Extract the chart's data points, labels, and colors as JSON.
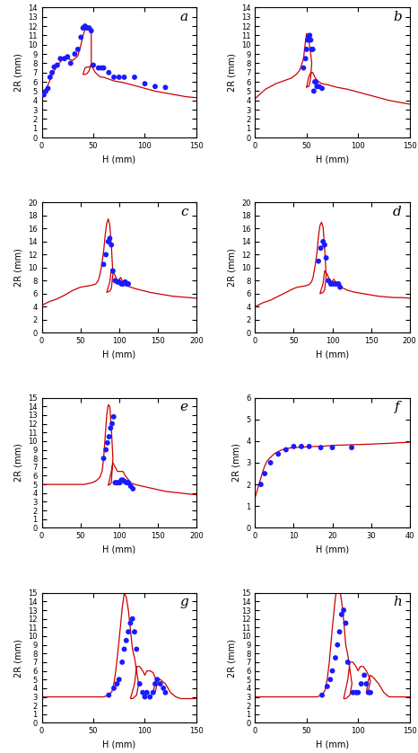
{
  "subplots": [
    {
      "label": "a",
      "xlim": [
        0,
        150
      ],
      "ylim": [
        0,
        14
      ],
      "xticks": [
        0,
        50,
        100,
        150
      ],
      "yticks": [
        0,
        1,
        2,
        3,
        4,
        5,
        6,
        7,
        8,
        9,
        10,
        11,
        12,
        13,
        14
      ],
      "xlabel": "H (mm)",
      "ylabel": "2R (mm)",
      "scatter_x": [
        2,
        4,
        6,
        8,
        10,
        12,
        15,
        18,
        22,
        25,
        28,
        32,
        35,
        38,
        40,
        42,
        44,
        46,
        48,
        50,
        55,
        58,
        60,
        65,
        70,
        75,
        80,
        90,
        100,
        110,
        120
      ],
      "scatter_y": [
        4.6,
        5.0,
        5.3,
        6.5,
        7.0,
        7.6,
        7.8,
        8.5,
        8.5,
        8.7,
        8.0,
        9.0,
        9.5,
        10.8,
        11.8,
        12.0,
        11.8,
        11.8,
        11.5,
        7.8,
        7.5,
        7.5,
        7.5,
        7.0,
        6.5,
        6.5,
        6.5,
        6.5,
        5.8,
        5.5,
        5.4
      ],
      "line_x": [
        0,
        1,
        3,
        5,
        8,
        12,
        16,
        20,
        25,
        30,
        35,
        38,
        40,
        42,
        44,
        46,
        48,
        48,
        46,
        44,
        42,
        40,
        42,
        44,
        46,
        48,
        50,
        52,
        54,
        56,
        58,
        60,
        65,
        70,
        80,
        90,
        100,
        110,
        120,
        130,
        140,
        150
      ],
      "line_y": [
        4.5,
        4.7,
        5.0,
        5.4,
        6.2,
        7.2,
        7.9,
        8.4,
        8.5,
        8.3,
        8.8,
        10.0,
        11.0,
        11.6,
        11.7,
        11.6,
        11.6,
        8.0,
        7.2,
        6.9,
        6.8,
        6.8,
        7.5,
        7.6,
        7.6,
        7.7,
        7.4,
        7.0,
        6.8,
        6.6,
        6.5,
        6.5,
        6.3,
        6.1,
        5.9,
        5.6,
        5.3,
        5.0,
        4.8,
        4.6,
        4.4,
        4.3
      ]
    },
    {
      "label": "b",
      "xlim": [
        0,
        150
      ],
      "ylim": [
        0,
        14
      ],
      "xticks": [
        0,
        50,
        100,
        150
      ],
      "yticks": [
        0,
        1,
        2,
        3,
        4,
        5,
        6,
        7,
        8,
        9,
        10,
        11,
        12,
        13,
        14
      ],
      "xlabel": "H (mm)",
      "ylabel": "2R (mm)",
      "scatter_x": [
        47,
        49,
        50,
        51,
        52,
        53,
        54,
        55,
        56,
        57,
        58,
        59,
        60,
        62,
        65
      ],
      "scatter_y": [
        7.5,
        8.5,
        9.5,
        10.5,
        10.8,
        11.0,
        10.5,
        9.5,
        9.5,
        5.0,
        6.0,
        6.0,
        5.5,
        5.5,
        5.3
      ],
      "line_x": [
        0,
        2,
        5,
        10,
        15,
        20,
        25,
        30,
        35,
        40,
        43,
        45,
        47,
        48,
        49,
        50,
        51,
        52,
        53,
        54,
        55,
        54,
        53,
        52,
        51,
        50,
        52,
        54,
        56,
        58,
        60,
        62,
        65,
        70,
        80,
        90,
        100,
        110,
        120,
        130,
        140,
        150
      ],
      "line_y": [
        4.2,
        4.4,
        4.7,
        5.2,
        5.5,
        5.8,
        6.0,
        6.2,
        6.4,
        6.8,
        7.2,
        7.8,
        8.5,
        9.5,
        10.5,
        11.2,
        11.0,
        10.5,
        9.8,
        9.0,
        8.0,
        6.5,
        5.8,
        5.5,
        5.5,
        5.4,
        6.5,
        7.0,
        7.0,
        6.5,
        6.2,
        6.0,
        5.8,
        5.7,
        5.4,
        5.2,
        4.9,
        4.6,
        4.3,
        4.0,
        3.8,
        3.6
      ]
    },
    {
      "label": "c",
      "xlim": [
        0,
        200
      ],
      "ylim": [
        0,
        20
      ],
      "xticks": [
        0,
        50,
        100,
        150,
        200
      ],
      "yticks": [
        0,
        2,
        4,
        6,
        8,
        10,
        12,
        14,
        16,
        18,
        20
      ],
      "xlabel": "H (mm)",
      "ylabel": "2R (mm)",
      "scatter_x": [
        80,
        83,
        86,
        88,
        90,
        92,
        95,
        98,
        100,
        103,
        105,
        108,
        110,
        112
      ],
      "scatter_y": [
        10.5,
        12.0,
        14.0,
        14.5,
        13.5,
        9.5,
        8.0,
        7.8,
        7.8,
        7.5,
        7.5,
        7.8,
        7.5,
        7.5
      ],
      "line_x": [
        0,
        5,
        10,
        20,
        30,
        40,
        50,
        55,
        60,
        65,
        70,
        73,
        75,
        77,
        80,
        82,
        84,
        86,
        88,
        90,
        92,
        90,
        88,
        86,
        84,
        88,
        90,
        92,
        94,
        96,
        98,
        100,
        102,
        104,
        106,
        108,
        110,
        115,
        120,
        130,
        140,
        150,
        160,
        170,
        180,
        190,
        200
      ],
      "line_y": [
        4.2,
        4.5,
        4.8,
        5.2,
        5.8,
        6.5,
        7.0,
        7.1,
        7.2,
        7.3,
        7.5,
        8.0,
        8.8,
        10.0,
        12.5,
        15.0,
        16.8,
        17.5,
        16.5,
        13.5,
        9.0,
        6.8,
        6.4,
        6.3,
        6.2,
        7.8,
        9.8,
        9.5,
        9.0,
        8.5,
        8.0,
        8.2,
        8.5,
        8.0,
        7.8,
        7.5,
        7.2,
        7.0,
        6.8,
        6.5,
        6.2,
        6.0,
        5.8,
        5.6,
        5.5,
        5.4,
        5.3
      ]
    },
    {
      "label": "d",
      "xlim": [
        0,
        200
      ],
      "ylim": [
        0,
        20
      ],
      "xticks": [
        0,
        50,
        100,
        150,
        200
      ],
      "yticks": [
        0,
        2,
        4,
        6,
        8,
        10,
        12,
        14,
        16,
        18,
        20
      ],
      "xlabel": "H (mm)",
      "ylabel": "2R (mm)",
      "scatter_x": [
        82,
        85,
        88,
        90,
        92,
        95,
        98,
        100,
        103,
        105,
        108,
        110
      ],
      "scatter_y": [
        11.0,
        13.0,
        14.0,
        13.5,
        11.5,
        8.0,
        7.5,
        7.5,
        7.5,
        7.5,
        7.5,
        7.0
      ],
      "line_x": [
        0,
        5,
        10,
        20,
        30,
        40,
        50,
        55,
        60,
        65,
        70,
        73,
        75,
        77,
        80,
        82,
        84,
        86,
        88,
        90,
        92,
        90,
        88,
        86,
        84,
        88,
        90,
        92,
        94,
        96,
        98,
        100,
        102,
        104,
        106,
        108,
        110,
        115,
        120,
        130,
        140,
        150,
        160,
        170,
        180,
        190,
        200
      ],
      "line_y": [
        4.0,
        4.3,
        4.6,
        5.0,
        5.6,
        6.2,
        6.8,
        7.0,
        7.1,
        7.2,
        7.4,
        7.8,
        8.5,
        9.8,
        12.2,
        14.8,
        16.5,
        17.0,
        16.2,
        13.0,
        8.8,
        6.6,
        6.2,
        6.1,
        6.0,
        7.6,
        9.5,
        9.2,
        8.8,
        8.2,
        7.8,
        8.0,
        8.2,
        7.8,
        7.5,
        7.2,
        7.0,
        6.8,
        6.5,
        6.2,
        6.0,
        5.8,
        5.6,
        5.5,
        5.4,
        5.4,
        5.3
      ]
    },
    {
      "label": "e",
      "xlim": [
        0,
        200
      ],
      "ylim": [
        0,
        15
      ],
      "xticks": [
        0,
        50,
        100,
        150,
        200
      ],
      "yticks": [
        0,
        1,
        2,
        3,
        4,
        5,
        6,
        7,
        8,
        9,
        10,
        11,
        12,
        13,
        14,
        15
      ],
      "xlabel": "H (mm)",
      "ylabel": "2R (mm)",
      "scatter_x": [
        80,
        83,
        85,
        87,
        89,
        91,
        93,
        95,
        97,
        99,
        101,
        103,
        105,
        108,
        110,
        112,
        115,
        118
      ],
      "scatter_y": [
        8.0,
        9.0,
        9.8,
        10.5,
        11.5,
        12.0,
        12.8,
        5.2,
        5.2,
        5.2,
        5.2,
        5.5,
        5.5,
        5.3,
        5.2,
        5.2,
        4.8,
        4.5
      ],
      "line_x": [
        0,
        5,
        10,
        20,
        30,
        40,
        50,
        55,
        60,
        65,
        70,
        75,
        78,
        80,
        82,
        84,
        86,
        88,
        90,
        92,
        90,
        88,
        86,
        90,
        92,
        95,
        98,
        100,
        102,
        105,
        108,
        110,
        115,
        120,
        130,
        140,
        150,
        160,
        170,
        180,
        190,
        200
      ],
      "line_y": [
        5.0,
        5.0,
        5.0,
        5.0,
        5.0,
        5.0,
        5.0,
        5.0,
        5.1,
        5.2,
        5.4,
        5.8,
        6.5,
        8.0,
        10.5,
        13.0,
        14.2,
        14.0,
        11.5,
        8.0,
        5.2,
        5.0,
        4.9,
        6.5,
        7.5,
        7.0,
        6.5,
        6.5,
        6.5,
        6.5,
        6.0,
        5.8,
        5.2,
        5.0,
        4.8,
        4.6,
        4.4,
        4.2,
        4.1,
        4.0,
        3.9,
        3.8
      ]
    },
    {
      "label": "f",
      "xlim": [
        0,
        40
      ],
      "ylim": [
        0,
        6
      ],
      "xticks": [
        0,
        10,
        20,
        30,
        40
      ],
      "yticks": [
        0,
        1,
        2,
        3,
        4,
        5,
        6
      ],
      "xlabel": "H (mm)",
      "ylabel": "2R (mm)",
      "scatter_x": [
        1.5,
        2.5,
        4,
        6,
        8,
        10,
        12,
        14,
        17,
        20,
        25
      ],
      "scatter_y": [
        2.0,
        2.5,
        3.0,
        3.4,
        3.6,
        3.75,
        3.75,
        3.75,
        3.7,
        3.7,
        3.7
      ],
      "line_x": [
        0,
        0.5,
        1,
        1.5,
        2,
        2.5,
        3,
        4,
        5,
        6,
        7,
        8,
        9,
        10,
        12,
        15,
        18,
        20,
        25,
        30,
        35,
        40
      ],
      "line_y": [
        1.4,
        1.7,
        2.0,
        2.3,
        2.6,
        2.85,
        3.05,
        3.25,
        3.42,
        3.52,
        3.6,
        3.65,
        3.68,
        3.7,
        3.72,
        3.75,
        3.77,
        3.8,
        3.83,
        3.86,
        3.9,
        3.95
      ]
    },
    {
      "label": "g",
      "xlim": [
        0,
        150
      ],
      "ylim": [
        0,
        15
      ],
      "xticks": [
        0,
        50,
        100,
        150
      ],
      "yticks": [
        0,
        1,
        2,
        3,
        4,
        5,
        6,
        7,
        8,
        9,
        10,
        11,
        12,
        13,
        14,
        15
      ],
      "xlabel": "H (mm)",
      "ylabel": "2R (mm)",
      "scatter_x": [
        65,
        70,
        73,
        75,
        78,
        80,
        82,
        84,
        86,
        88,
        90,
        92,
        95,
        98,
        100,
        102,
        105,
        108,
        110,
        112,
        115,
        118,
        120
      ],
      "scatter_y": [
        3.2,
        4.0,
        4.5,
        5.0,
        7.0,
        8.5,
        9.5,
        10.5,
        11.5,
        12.0,
        10.5,
        8.5,
        4.5,
        3.5,
        3.0,
        3.5,
        3.0,
        3.5,
        4.5,
        5.0,
        4.5,
        4.0,
        3.5
      ],
      "line_x": [
        0,
        5,
        10,
        20,
        30,
        40,
        50,
        55,
        60,
        65,
        68,
        70,
        72,
        75,
        78,
        80,
        82,
        84,
        86,
        88,
        90,
        92,
        94,
        92,
        90,
        88,
        86,
        90,
        92,
        95,
        98,
        100,
        102,
        105,
        108,
        110,
        112,
        110,
        108,
        110,
        112,
        115,
        120,
        125,
        130,
        135,
        140,
        150
      ],
      "line_y": [
        3.0,
        3.0,
        3.0,
        3.0,
        3.0,
        3.0,
        3.0,
        3.0,
        3.0,
        3.2,
        3.6,
        4.5,
        6.2,
        9.5,
        13.2,
        15.0,
        14.5,
        13.0,
        10.8,
        8.5,
        7.5,
        6.0,
        4.5,
        3.2,
        3.0,
        2.8,
        2.8,
        4.5,
        6.5,
        6.5,
        6.0,
        5.5,
        6.0,
        6.0,
        5.8,
        5.2,
        4.5,
        3.5,
        3.5,
        4.5,
        5.0,
        5.0,
        4.5,
        3.5,
        3.0,
        2.8,
        2.8,
        2.8
      ]
    },
    {
      "label": "h",
      "xlim": [
        0,
        150
      ],
      "ylim": [
        0,
        15
      ],
      "xticks": [
        0,
        50,
        100,
        150
      ],
      "yticks": [
        0,
        1,
        2,
        3,
        4,
        5,
        6,
        7,
        8,
        9,
        10,
        11,
        12,
        13,
        14,
        15
      ],
      "xlabel": "H (mm)",
      "ylabel": "2R (mm)",
      "scatter_x": [
        65,
        70,
        73,
        75,
        78,
        80,
        82,
        84,
        86,
        88,
        90,
        95,
        98,
        100,
        103,
        106,
        108,
        110,
        112
      ],
      "scatter_y": [
        3.2,
        4.2,
        5.0,
        6.0,
        7.5,
        9.0,
        10.5,
        12.5,
        13.0,
        11.5,
        7.0,
        3.5,
        3.5,
        3.5,
        4.5,
        5.5,
        4.5,
        3.5,
        3.5
      ],
      "line_x": [
        0,
        5,
        10,
        20,
        30,
        40,
        50,
        55,
        60,
        65,
        68,
        70,
        72,
        75,
        78,
        80,
        82,
        84,
        86,
        88,
        90,
        92,
        94,
        92,
        90,
        88,
        86,
        90,
        92,
        95,
        98,
        100,
        102,
        105,
        108,
        110,
        112,
        110,
        108,
        110,
        112,
        115,
        120,
        125,
        130,
        140,
        150
      ],
      "line_y": [
        3.0,
        3.0,
        3.0,
        3.0,
        3.0,
        3.0,
        3.0,
        3.0,
        3.0,
        3.2,
        3.8,
        5.0,
        7.0,
        11.0,
        14.5,
        16.0,
        15.5,
        14.0,
        11.8,
        9.0,
        7.8,
        6.2,
        4.5,
        3.2,
        3.0,
        2.8,
        2.8,
        5.0,
        7.0,
        7.0,
        6.5,
        6.0,
        6.5,
        6.5,
        6.0,
        5.5,
        4.8,
        3.8,
        3.5,
        5.0,
        5.5,
        5.2,
        4.5,
        3.5,
        3.0,
        3.0,
        3.0
      ]
    }
  ],
  "line_color": "#cc0000",
  "scatter_color": "#1a1aff",
  "scatter_size": 18,
  "line_width": 0.9,
  "label_fontsize": 7,
  "tick_fontsize": 6,
  "subplot_label_fontsize": 11
}
